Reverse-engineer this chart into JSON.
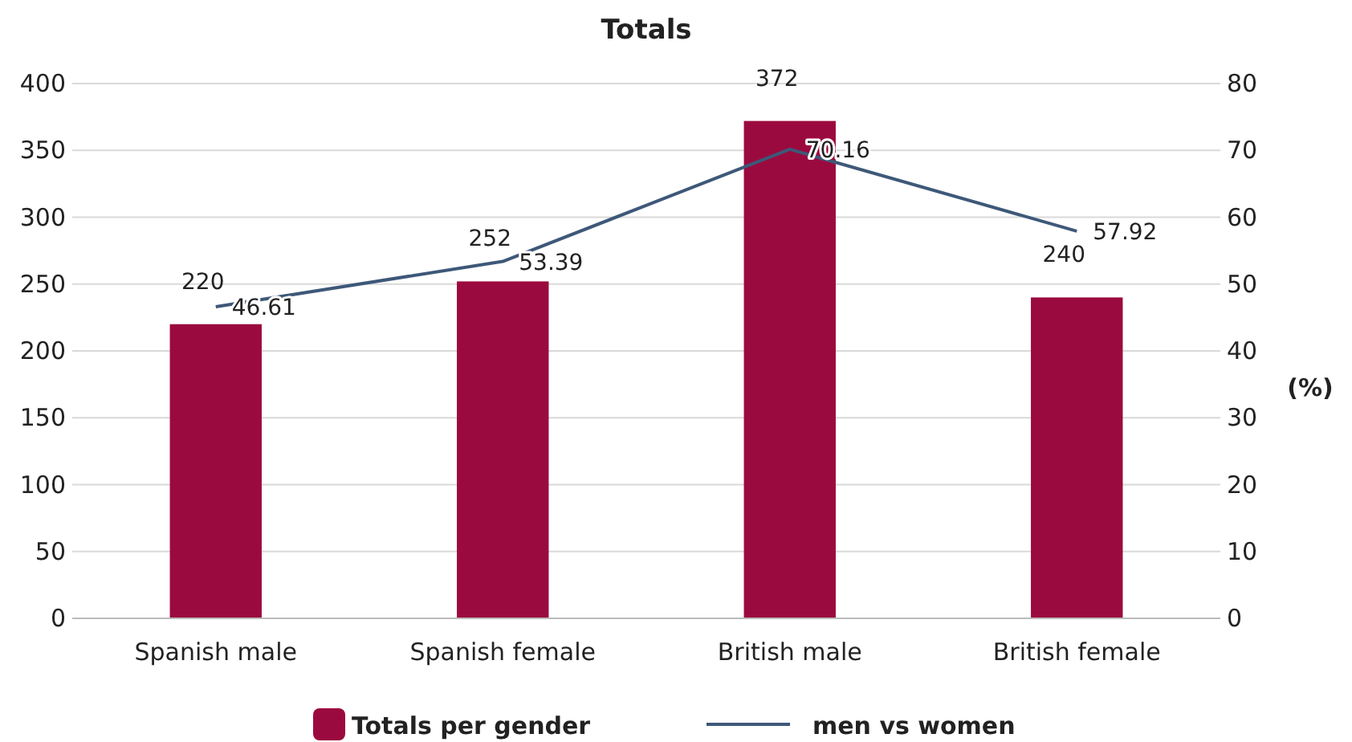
{
  "chart_data": {
    "type": "bar",
    "title": "Totals",
    "y2label": "(%)",
    "categories": [
      "Spanish male",
      "Spanish female",
      "British male",
      "British female"
    ],
    "series": [
      {
        "name": "Totals per gender",
        "color": "#9b0a3e",
        "values": [
          220,
          252,
          372,
          240
        ]
      },
      {
        "name": "men vs women",
        "type": "line",
        "axis": "y2",
        "color": "#3e5878",
        "values": [
          46.61,
          53.39,
          70.16,
          57.92
        ]
      }
    ],
    "ylim": [
      0,
      400
    ],
    "yticks": [
      0,
      50,
      100,
      150,
      200,
      250,
      300,
      350,
      400
    ],
    "y2lim": [
      0,
      80
    ],
    "y2ticks": [
      0,
      10,
      20,
      30,
      40,
      50,
      60,
      70,
      80
    ],
    "grid": "y",
    "legend": "bottom",
    "data_labels": true,
    "marker": "none"
  }
}
